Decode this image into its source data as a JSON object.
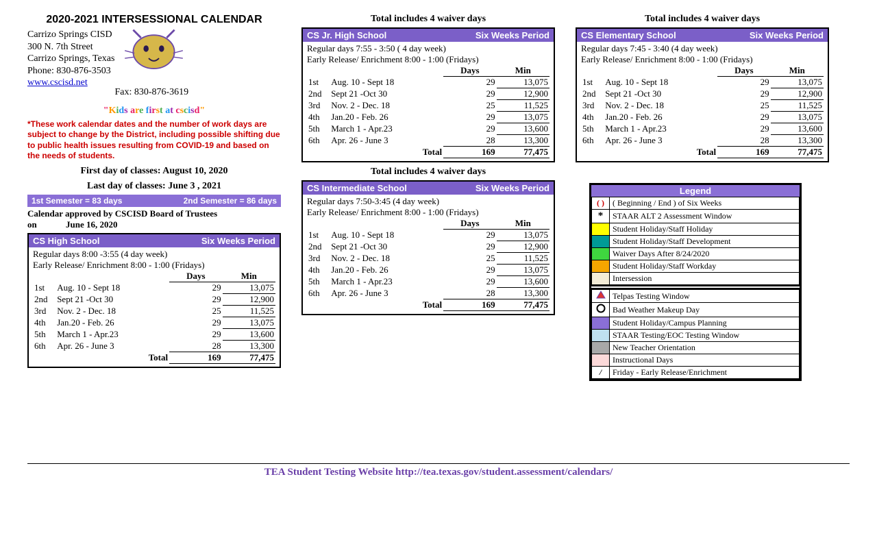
{
  "header": {
    "title": "2020-2021 INTERSESSIONAL CALENDAR",
    "district": "Carrizo Springs CISD",
    "addr1": "300 N. 7th Street",
    "city": "Carrizo Springs, Texas",
    "phone": "Phone: 830-876-3503",
    "fax": "Fax: 830-876-3619",
    "url": "www.cscisd.net",
    "slogan": "\"Kids are first at cscisd\"",
    "slogan_colors": [
      "#e91e63",
      "#ff9800",
      "#4caf50",
      "#2196f3",
      "#9c27b0",
      "#e91e63",
      "#ff9800",
      "#4caf50",
      "#2196f3",
      "#9c27b0",
      "#e91e63",
      "#ff9800",
      "#4caf50",
      "#2196f3",
      "#9c27b0",
      "#e91e63",
      "#ff9800",
      "#4caf50",
      "#2196f3",
      "#9c27b0",
      "#e91e63",
      "#ff9800",
      "#4caf50",
      "#2196f3",
      "#9c27b0",
      "#e91e63"
    ],
    "notice": "*These work calendar dates and the number of work days are subject to change by the District, including possible shifting due to public health issues resulting from COVID-19 and based on the needs of students.",
    "first_day": "First day of classes: August 10, 2020",
    "last_day": "Last day of classes: June 3 , 2021",
    "sem1": "1st Semester = 83 days",
    "sem2": "2nd Semester = 86 days",
    "approved1": "Calendar approved by CSCISD Board of Trustees",
    "approved2": "on",
    "approved_date": "June 16, 2020"
  },
  "labels": {
    "six_weeks": "Six Weeks Period",
    "days": "Days",
    "min": "Min",
    "total": "Total",
    "waiver": "Total includes 4 waiver days",
    "legend": "Legend"
  },
  "periods": [
    {
      "p": "1st",
      "range": "Aug. 10  -   Sept 18",
      "days": "29",
      "min": "13,075"
    },
    {
      "p": "2nd",
      "range": "Sept 21 -Oct 30",
      "days": "29",
      "min": "12,900"
    },
    {
      "p": "3rd",
      "range": "Nov. 2  -  Dec. 18",
      "days": "25",
      "min": "11,525"
    },
    {
      "p": "4th",
      "range": "Jan.20    -  Feb. 26",
      "days": "29",
      "min": "13,075"
    },
    {
      "p": "5th",
      "range": "March 1  - Apr.23",
      "days": "29",
      "min": "13,600"
    },
    {
      "p": "6th",
      "range": "Apr. 26  - June 3",
      "days": "28",
      "min": "13,300"
    }
  ],
  "totals": {
    "days": "169",
    "min": "77,475"
  },
  "schools": {
    "hs": {
      "name": "CS High School",
      "reg": "Regular days 8:00 -3:55 (4 day week)",
      "er": "Early Release/ Enrichment   8:00  - 1:00 (Fridays)"
    },
    "jr": {
      "name": "CS Jr. High School",
      "reg": "Regular days  7:55 - 3:50  ( 4 day week)",
      "er": "Early Release/ Enrichment   8:00  - 1:00 (Fridays)"
    },
    "int": {
      "name": "CS Intermediate School",
      "reg": "Regular days 7:50-3:45 (4 day week)",
      "er": "Early Release/ Enrichment   8:00  - 1:00 (Fridays)"
    },
    "el": {
      "name": "CS Elementary School",
      "reg": "Regular days 7:45 - 3:40 (4 day week)",
      "er": "Early Release/ Enrichment   8:00 - 1:00 (Fridays)"
    }
  },
  "legend": [
    {
      "sym": "paren",
      "text": "( Beginning  /  End ) of Six Weeks"
    },
    {
      "sym": "star",
      "text": "STAAR ALT 2 Assessment Window"
    },
    {
      "sym": "yellow",
      "text": "Student Holiday/Staff Holiday",
      "color": "#ffff00"
    },
    {
      "sym": "teal",
      "text": "Student Holiday/Staff Development",
      "color": "#009a96"
    },
    {
      "sym": "green",
      "text": "Waiver Days After 8/24/2020",
      "color": "#3fd63f"
    },
    {
      "sym": "orange",
      "text": "Student Holiday/Staff Workday",
      "color": "#f5a600"
    },
    {
      "sym": "beige",
      "text": "Intersession",
      "color": "#f3ecd7"
    }
  ],
  "legend2": [
    {
      "sym": "triangle",
      "text": "Telpas Testing Window"
    },
    {
      "sym": "circle",
      "text": "Bad Weather Makeup Day"
    },
    {
      "sym": "purple",
      "text": "Student Holiday/Campus Planning",
      "color": "#8a6fd6"
    },
    {
      "sym": "ltblue",
      "text": "STAAR Testing/EOC Testing Window",
      "color": "#bfe0f0"
    },
    {
      "sym": "grey",
      "text": "New Teacher Orientation",
      "color": "#a8a8a8"
    },
    {
      "sym": "pink",
      "text": "Instructional Days",
      "color": "#fcd9d9"
    },
    {
      "sym": "slash",
      "text": "Friday - Early Release/Enrichment"
    }
  ],
  "footer": "TEA Student Testing Website   http://tea.texas.gov/student.assessment/calendars/"
}
